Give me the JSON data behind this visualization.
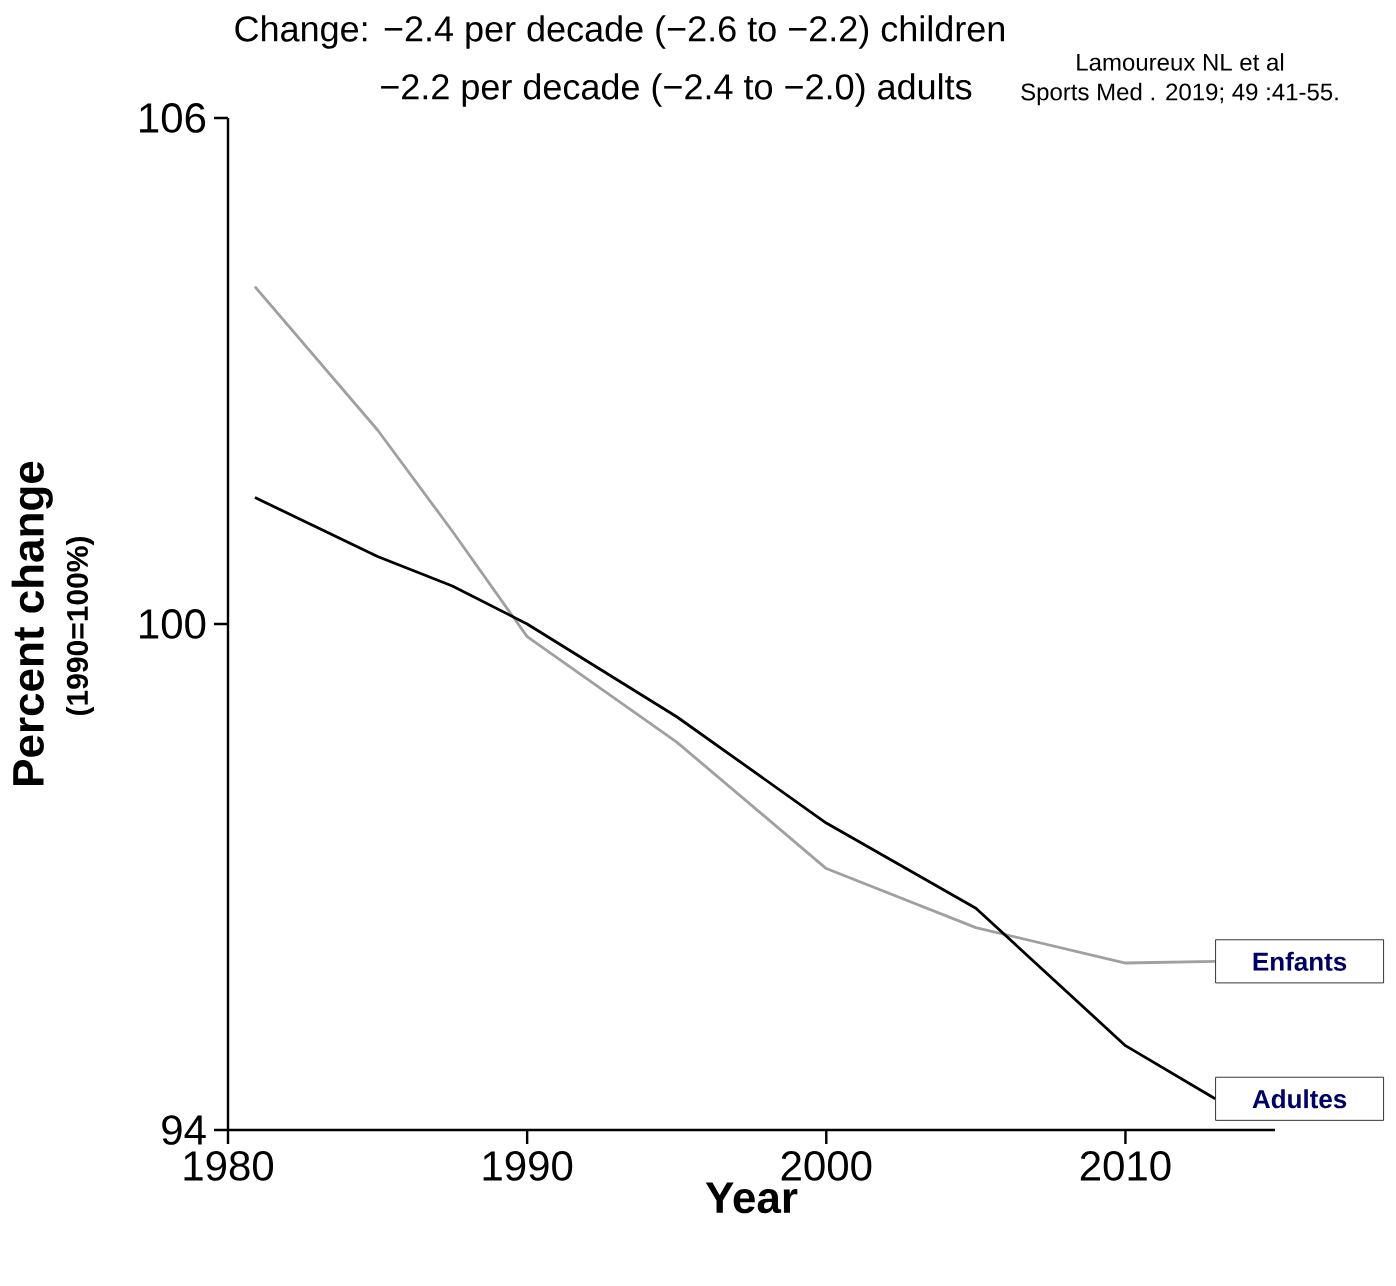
{
  "chart_data": {
    "type": "line",
    "ylabel": "Percent change",
    "xlabel": "Year",
    "x": [
      1980.9,
      1985,
      1987.5,
      1990,
      1995,
      2000,
      2005,
      2010,
      2013
    ],
    "xlim": [
      1980,
      2015
    ],
    "ylim": [
      94,
      106
    ],
    "xticks": [
      1980,
      1990,
      2000,
      2010
    ],
    "yticks": [
      94,
      100,
      106
    ],
    "series": [
      {
        "name": "Enfants",
        "color": "#a0a0a0",
        "values": [
          104.0,
          102.3,
          101.1,
          99.85,
          98.6,
          97.1,
          96.4,
          95.98,
          96.0
        ]
      },
      {
        "name": "Adultes",
        "color": "#000000",
        "values": [
          101.5,
          100.8,
          100.45,
          100.0,
          98.9,
          97.64,
          96.63,
          95.0,
          94.37
        ]
      }
    ],
    "annotations": [
      "(1990=100%)",
      "Change: −2.4 per decade (−2.6 to −2.2) children",
      "−2.2 per decade (−2.4 to −2.0) adults",
      "Lamoureux NL et al",
      "Sports Med . 2019; 49 :41-55."
    ],
    "legend": false,
    "grid": false,
    "marker": "none",
    "line_style": "solid"
  }
}
